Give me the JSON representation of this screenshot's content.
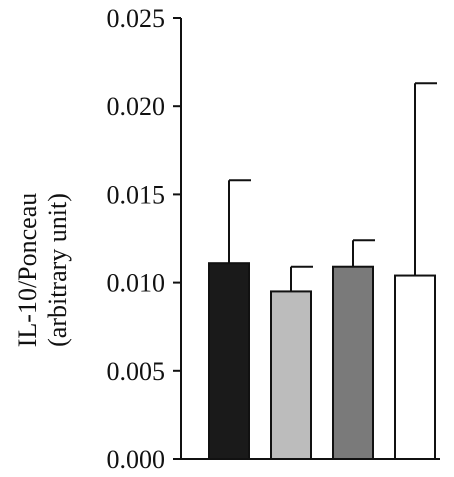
{
  "chart_data": {
    "type": "bar",
    "ylabel": [
      "IL-10/Ponceau",
      "(arbitrary unit)"
    ],
    "ylim": [
      0,
      0.025
    ],
    "yticks": [
      "0.025",
      "0.020",
      "0.015",
      "0.010",
      "0.005",
      "0.000"
    ],
    "grid": false,
    "bars": [
      {
        "value": 0.0111,
        "error": 0.0047,
        "fill": "#1a1a1a"
      },
      {
        "value": 0.0095,
        "error": 0.0014,
        "fill": "#bcbcbc"
      },
      {
        "value": 0.0109,
        "error": 0.0015,
        "fill": "#7a7a7a"
      },
      {
        "value": 0.0104,
        "error": 0.0109,
        "fill": "#ffffff"
      }
    ]
  }
}
